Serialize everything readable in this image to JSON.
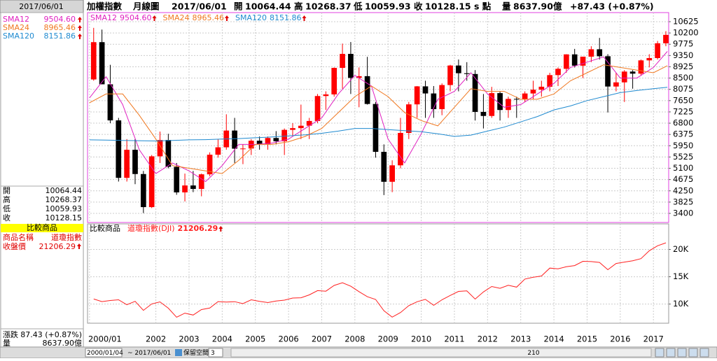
{
  "header": {
    "product": "加權指數",
    "period": "月線圖",
    "date": "2017/06/01",
    "open_label": "開",
    "open": "10064.44",
    "high_label": "高",
    "high": "10268.37",
    "low_label": "低",
    "low": "10059.93",
    "close_label": "收",
    "close": "10128.15",
    "unit": "s 點",
    "volume_label": "量",
    "volume": "8637.90",
    "volume_unit": "億",
    "change": "+87.43 (+0.87%)"
  },
  "left_panel": {
    "compare_title": "比較商品",
    "name_label": "商品名稱",
    "name_value": "道瓊指數",
    "close_label": "收盤價",
    "close_value": "21206.29",
    "change_label": "漲跌",
    "change_value": "87.43 (+0.87%)",
    "volume_label": "量",
    "volume_value": "8637.90億"
  },
  "toolbar": {
    "start": "2000/01/04",
    "end": "~ 2017/06/01",
    "reserve_label": "保留空間",
    "reserve_value": "3",
    "count": "210"
  },
  "chart_data": [
    {
      "type": "candlestick",
      "up_color": "#ff0000",
      "down_color": "#000000",
      "x": [
        2000.125,
        2000.375,
        2000.625,
        2000.875,
        2001.125,
        2001.375,
        2001.625,
        2001.875,
        2002.125,
        2002.375,
        2002.625,
        2002.875,
        2003.125,
        2003.375,
        2003.625,
        2003.875,
        2004.125,
        2004.375,
        2004.625,
        2004.875,
        2005.125,
        2005.375,
        2005.625,
        2005.875,
        2006.125,
        2006.375,
        2006.625,
        2006.875,
        2007.125,
        2007.375,
        2007.625,
        2007.875,
        2008.125,
        2008.375,
        2008.625,
        2008.875,
        2009.125,
        2009.375,
        2009.625,
        2009.875,
        2010.125,
        2010.375,
        2010.625,
        2010.875,
        2011.125,
        2011.375,
        2011.625,
        2011.875,
        2012.125,
        2012.375,
        2012.625,
        2012.875,
        2013.125,
        2013.375,
        2013.625,
        2013.875,
        2014.125,
        2014.375,
        2014.625,
        2014.875,
        2015.125,
        2015.375,
        2015.625,
        2015.875,
        2016.125,
        2016.375,
        2016.625,
        2016.875,
        2017.125,
        2017.375
      ],
      "open": [
        8448,
        9854,
        8265,
        6905,
        4739,
        5797,
        4883,
        3636,
        5551,
        6167,
        5153,
        4191,
        4452,
        4321,
        4872,
        5611,
        5890,
        6522,
        5839,
        5845,
        6139,
        6006,
        6241,
        6119,
        6548,
        6613,
        6704,
        6883,
        7823,
        7884,
        8883,
        9411,
        8506,
        8572,
        7524,
        5719,
        4591,
        5211,
        6432,
        7509,
        8188,
        7920,
        7329,
        8237,
        8973,
        8683,
        8653,
        7225,
        7072,
        7933,
        7296,
        7715,
        7700,
        7919,
        8062,
        8174,
        8612,
        8849,
        9393,
        8967,
        9307,
        9586,
        9323,
        8181,
        8338,
        8745,
        8667,
        9167,
        9254,
        9812
      ],
      "high": [
        10393,
        10328,
        9000,
        7000,
        6200,
        6200,
        5000,
        5600,
        6484,
        6400,
        5300,
        4900,
        5000,
        4900,
        5700,
        6200,
        7135,
        7000,
        6000,
        6200,
        6300,
        6300,
        6500,
        6600,
        6800,
        7500,
        7000,
        7900,
        8000,
        8900,
        9800,
        9859,
        8900,
        9300,
        7600,
        6000,
        5400,
        7000,
        7600,
        8200,
        8400,
        8200,
        8300,
        9000,
        9200,
        9100,
        8800,
        7900,
        8170,
        8000,
        7800,
        7800,
        8000,
        8400,
        8400,
        8700,
        8900,
        9400,
        9600,
        9300,
        9700,
        10014,
        9400,
        8700,
        8800,
        8800,
        9200,
        9400,
        9900,
        10268.37
      ],
      "low": [
        8400,
        8300,
        6800,
        4600,
        4600,
        4500,
        3411,
        3600,
        5300,
        5100,
        4100,
        3850,
        4200,
        4044,
        4800,
        5500,
        5800,
        5300,
        5255,
        5600,
        5800,
        5800,
        6000,
        5600,
        6300,
        6200,
        6200,
        6800,
        7300,
        7800,
        8100,
        7900,
        7400,
        7500,
        5500,
        4089,
        4200,
        5100,
        6200,
        7000,
        7000,
        7000,
        7100,
        8000,
        8000,
        8400,
        6900,
        6600,
        7000,
        6900,
        7000,
        7000,
        7600,
        7700,
        7800,
        8000,
        8200,
        8700,
        8900,
        8500,
        9100,
        9200,
        7203,
        8000,
        7600,
        8100,
        8600,
        8900,
        9200,
        9700
      ],
      "close": [
        9854,
        8265,
        6905,
        4739,
        5797,
        4883,
        3636,
        5551,
        6167,
        5153,
        4191,
        4452,
        4321,
        4872,
        5611,
        5890,
        6522,
        5839,
        5845,
        6139,
        6006,
        6241,
        6119,
        6548,
        6613,
        6704,
        6883,
        7823,
        7884,
        8883,
        9411,
        8506,
        8572,
        7524,
        5719,
        4591,
        5211,
        6432,
        7509,
        8188,
        7920,
        7329,
        8237,
        8973,
        8683,
        8653,
        7225,
        7072,
        7933,
        7296,
        7715,
        7700,
        7919,
        8062,
        8174,
        8612,
        8849,
        9393,
        8967,
        9307,
        9586,
        9323,
        8181,
        8338,
        8745,
        8667,
        9167,
        9254,
        9812,
        10128.15
      ],
      "series": [
        {
          "name": "SMA12",
          "last_label": "9504.60",
          "color": "#e020c0",
          "x": [
            2000,
            2000.5,
            2001,
            2001.5,
            2002,
            2002.5,
            2003,
            2003.5,
            2004,
            2004.5,
            2005,
            2005.5,
            2006,
            2006.5,
            2007,
            2007.5,
            2008,
            2008.5,
            2009,
            2009.5,
            2010,
            2010.5,
            2011,
            2011.5,
            2012,
            2012.5,
            2013,
            2013.5,
            2014,
            2014.5,
            2015,
            2015.5,
            2016,
            2016.5,
            2017,
            2017.42
          ],
          "values": [
            7750,
            8550,
            7500,
            5800,
            4900,
            5300,
            5000,
            4600,
            5200,
            6000,
            6000,
            6050,
            6200,
            6600,
            7000,
            7900,
            8600,
            8200,
            6200,
            5300,
            6400,
            7700,
            8000,
            8700,
            7900,
            7400,
            7500,
            7900,
            8300,
            8900,
            9100,
            9300,
            8500,
            8500,
            8900,
            9504.6
          ]
        },
        {
          "name": "SMA24",
          "last_label": "8965.46",
          "color": "#f07820",
          "x": [
            2000,
            2000.5,
            2001,
            2001.5,
            2002,
            2002.5,
            2003,
            2003.5,
            2004,
            2004.5,
            2005,
            2005.5,
            2006,
            2006.5,
            2007,
            2007.5,
            2008,
            2008.5,
            2009,
            2009.5,
            2010,
            2010.5,
            2011,
            2011.5,
            2012,
            2012.5,
            2013,
            2013.5,
            2014,
            2014.5,
            2015,
            2015.5,
            2016,
            2016.5,
            2017,
            2017.42
          ],
          "values": [
            7570,
            7900,
            7900,
            7100,
            6200,
            5200,
            5100,
            5000,
            4900,
            5400,
            6000,
            6000,
            6100,
            6300,
            6600,
            7200,
            7800,
            8200,
            7800,
            7200,
            6900,
            6700,
            7400,
            8100,
            8000,
            8000,
            7700,
            7700,
            7900,
            8400,
            8700,
            9000,
            8900,
            8800,
            8700,
            8965.46
          ]
        },
        {
          "name": "SMA120",
          "last_label": "8151.86",
          "color": "#1f8ad0",
          "x": [
            2000,
            2000.5,
            2001,
            2001.5,
            2002,
            2002.5,
            2003,
            2003.5,
            2004,
            2004.5,
            2005,
            2005.5,
            2006,
            2006.5,
            2007,
            2007.5,
            2008,
            2008.5,
            2009,
            2009.5,
            2010,
            2010.5,
            2011,
            2011.5,
            2012,
            2012.5,
            2013,
            2013.5,
            2014,
            2014.5,
            2015,
            2015.5,
            2016,
            2016.5,
            2017,
            2017.42
          ],
          "values": [
            6170,
            6160,
            6150,
            6140,
            6130,
            6150,
            6170,
            6180,
            6200,
            6220,
            6250,
            6280,
            6320,
            6360,
            6420,
            6500,
            6600,
            6600,
            6560,
            6520,
            6480,
            6400,
            6300,
            6350,
            6500,
            6650,
            6850,
            7050,
            7300,
            7450,
            7650,
            7800,
            7950,
            8030,
            8100,
            8151.86
          ]
        }
      ],
      "xlim": [
        1999.94,
        2017.46
      ],
      "ylim": [
        3057,
        10968
      ],
      "xticks": [
        {
          "value": 2000,
          "label": "2000/01"
        },
        2002,
        2003,
        2004,
        2005,
        2006,
        2007,
        2008,
        2009,
        2010,
        2011,
        2012,
        2013,
        2014,
        2015,
        2016,
        2017
      ],
      "yticks": [
        3400,
        3825,
        4250,
        4675,
        5100,
        5525,
        5950,
        6375,
        6800,
        7225,
        7650,
        8075,
        8500,
        8925,
        9350,
        9775,
        10200,
        10625
      ],
      "grid": true
    },
    {
      "type": "line",
      "title": "比較商品",
      "series": [
        {
          "name": "道瓊指數(DJI)",
          "last_label": "21206.29",
          "color": "#ff2020",
          "x": [
            2000.125,
            2000.375,
            2000.625,
            2000.875,
            2001.125,
            2001.375,
            2001.625,
            2001.875,
            2002.125,
            2002.375,
            2002.625,
            2002.875,
            2003.125,
            2003.375,
            2003.625,
            2003.875,
            2004.125,
            2004.375,
            2004.625,
            2004.875,
            2005.125,
            2005.375,
            2005.625,
            2005.875,
            2006.125,
            2006.375,
            2006.625,
            2006.875,
            2007.125,
            2007.375,
            2007.625,
            2007.875,
            2008.125,
            2008.375,
            2008.625,
            2008.875,
            2009.125,
            2009.375,
            2009.625,
            2009.875,
            2010.125,
            2010.375,
            2010.625,
            2010.875,
            2011.125,
            2011.375,
            2011.625,
            2011.875,
            2012.125,
            2012.375,
            2012.625,
            2012.875,
            2013.125,
            2013.375,
            2013.625,
            2013.875,
            2014.125,
            2014.375,
            2014.625,
            2014.875,
            2015.125,
            2015.375,
            2015.625,
            2015.875,
            2016.125,
            2016.375,
            2016.625,
            2016.875,
            2017.125,
            2017.375
          ],
          "values": [
            10922,
            10448,
            10651,
            10787,
            9879,
            10502,
            8848,
            10022,
            10404,
            9243,
            7592,
            8342,
            7992,
            8985,
            9275,
            10454,
            10358,
            10435,
            10080,
            10783,
            10504,
            10275,
            10569,
            10718,
            11109,
            11150,
            11679,
            12463,
            12354,
            13408,
            13896,
            13265,
            12263,
            11350,
            10851,
            8776,
            7609,
            8447,
            9712,
            10428,
            10857,
            9774,
            10788,
            11578,
            12320,
            12414,
            10913,
            12218,
            13212,
            12880,
            13437,
            13104,
            14579,
            14910,
            15130,
            16577,
            16458,
            16827,
            17043,
            17823,
            17776,
            17620,
            16285,
            17425,
            17685,
            17930,
            18308,
            19763,
            20663,
            21206.29
          ]
        }
      ],
      "xlim": [
        1999.94,
        2017.46
      ],
      "ylim": [
        6494,
        24675
      ],
      "yticks": [
        {
          "value": 10000,
          "label": "10K"
        },
        {
          "value": 15000,
          "label": "15K"
        },
        {
          "value": 20000,
          "label": "20K"
        }
      ],
      "grid": true
    }
  ]
}
